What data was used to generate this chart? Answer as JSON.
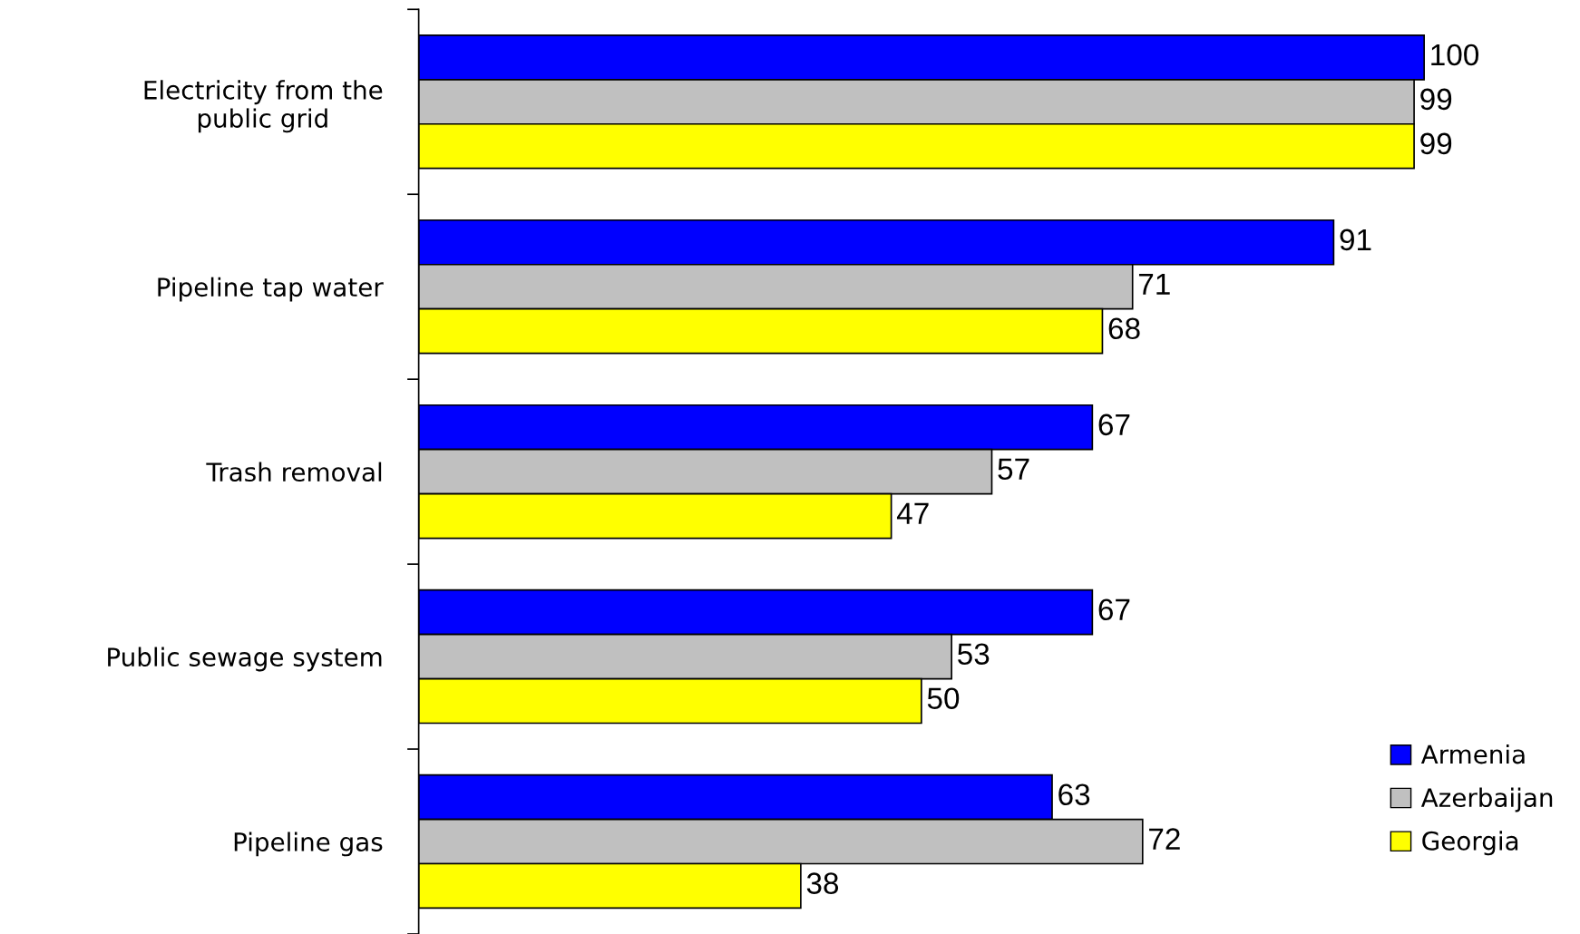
{
  "chart_data": {
    "type": "bar",
    "orientation": "horizontal",
    "categories": [
      "Electricity from the\npublic grid",
      "Pipeline tap water",
      "Trash removal",
      "Public sewage system",
      "Pipeline gas"
    ],
    "series": [
      {
        "name": "Armenia",
        "color": "#0000ff",
        "values": [
          100,
          91,
          67,
          67,
          63
        ]
      },
      {
        "name": "Azerbaijan",
        "color": "#c0c0c0",
        "values": [
          99,
          71,
          57,
          53,
          72
        ]
      },
      {
        "name": "Georgia",
        "color": "#ffff00",
        "values": [
          99,
          68,
          47,
          50,
          38
        ]
      }
    ],
    "data_labels": true,
    "legend": "bottom right",
    "grid": false
  }
}
